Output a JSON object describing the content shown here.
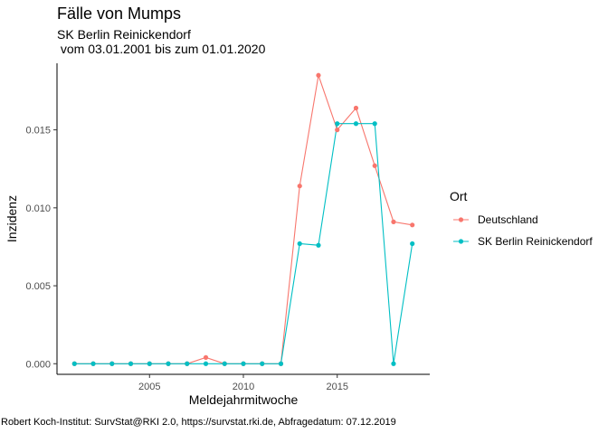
{
  "chart_data": {
    "type": "line",
    "title": "Fälle von Mumps",
    "subtitle_line1": "SK Berlin Reinickendorf",
    "subtitle_line2": " vom 03.01.2001 bis zum 01.01.2020",
    "xlabel": "Meldejahrmitwoche",
    "ylabel": "Inzidenz",
    "caption": "Robert Koch-Institut: SurvStat@RKI 2.0, https://survstat.rki.de, Abfragedatum: 07.12.2019",
    "xlim": [
      2000.07,
      2019.93
    ],
    "ylim": [
      -0.00068,
      0.01927
    ],
    "x_ticks": [
      2005,
      2010,
      2015
    ],
    "x_tick_labels": [
      "2005",
      "2010",
      "2015"
    ],
    "y_ticks": [
      0,
      0.005,
      0.01,
      0.015
    ],
    "y_tick_labels": [
      "0.000",
      "0.005",
      "0.010",
      "0.015"
    ],
    "grid": false,
    "legend": {
      "title": "Ort",
      "position": "right"
    },
    "x": [
      2001,
      2002,
      2003,
      2004,
      2005,
      2006,
      2007,
      2008,
      2009,
      2010,
      2011,
      2012,
      2013,
      2014,
      2015,
      2016,
      2017,
      2018,
      2019
    ],
    "series": [
      {
        "name": "Deutschland",
        "color": "#F8766D",
        "values": [
          0,
          0,
          0,
          0,
          0,
          0,
          0,
          0.0004,
          0,
          0,
          0,
          0,
          0.0114,
          0.0185,
          0.015,
          0.0164,
          0.0127,
          0.0091,
          0.0089
        ]
      },
      {
        "name": "SK Berlin Reinickendorf",
        "color": "#00BFC4",
        "values": [
          0,
          0,
          0,
          0,
          0,
          0,
          0,
          0,
          0,
          0,
          0,
          0,
          0.0077,
          0.0076,
          0.0154,
          0.0154,
          0.0154,
          0,
          0.0077
        ]
      }
    ]
  }
}
